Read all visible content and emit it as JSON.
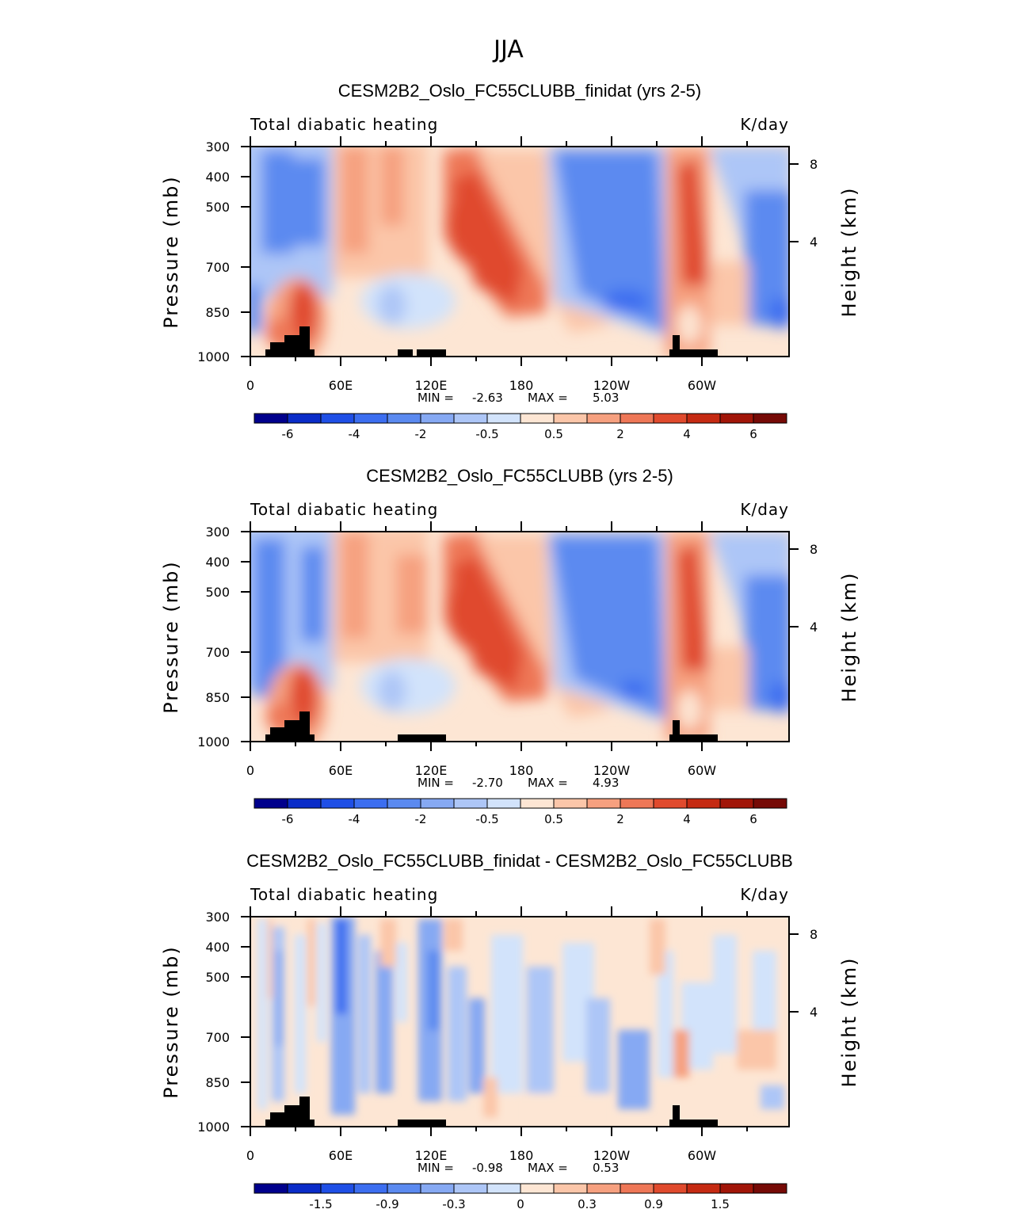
{
  "figure": {
    "title": "JJA"
  },
  "chart_data": [
    {
      "type": "heatmap",
      "title": "CESM2B2_Oslo_FC55CLUBB_finidat (yrs 2-5)",
      "left_label": "Total diabatic heating",
      "right_label": "K/day",
      "ylabel": "Pressure (mb)",
      "ylabel_right": "Height (km)",
      "x_ticks": [
        "0",
        "60E",
        "120E",
        "180",
        "120W",
        "60W"
      ],
      "y_ticks": [
        "300",
        "400",
        "500",
        "700",
        "850",
        "1000"
      ],
      "y_right_ticks": [
        "8",
        "4"
      ],
      "min_label": "MIN =",
      "min_value": "-2.63",
      "max_label": "MAX =",
      "max_value": "5.03",
      "colorbar_labels": [
        "-6",
        "-4",
        "-2",
        "-0.5",
        "0.5",
        "2",
        "4",
        "6"
      ]
    },
    {
      "type": "heatmap",
      "title": "CESM2B2_Oslo_FC55CLUBB (yrs 2-5)",
      "left_label": "Total diabatic heating",
      "right_label": "K/day",
      "ylabel": "Pressure (mb)",
      "ylabel_right": "Height (km)",
      "x_ticks": [
        "0",
        "60E",
        "120E",
        "180",
        "120W",
        "60W"
      ],
      "y_ticks": [
        "300",
        "400",
        "500",
        "700",
        "850",
        "1000"
      ],
      "y_right_ticks": [
        "8",
        "4"
      ],
      "min_label": "MIN =",
      "min_value": "-2.70",
      "max_label": "MAX =",
      "max_value": "4.93",
      "colorbar_labels": [
        "-6",
        "-4",
        "-2",
        "-0.5",
        "0.5",
        "2",
        "4",
        "6"
      ]
    },
    {
      "type": "heatmap",
      "title": "CESM2B2_Oslo_FC55CLUBB_finidat - CESM2B2_Oslo_FC55CLUBB",
      "left_label": "Total diabatic heating",
      "right_label": "K/day",
      "ylabel": "Pressure (mb)",
      "ylabel_right": "Height (km)",
      "x_ticks": [
        "0",
        "60E",
        "120E",
        "180",
        "120W",
        "60W"
      ],
      "y_ticks": [
        "300",
        "400",
        "500",
        "700",
        "850",
        "1000"
      ],
      "y_right_ticks": [
        "8",
        "4"
      ],
      "min_label": "MIN =",
      "min_value": "-0.98",
      "max_label": "MAX =",
      "max_value": "0.53",
      "colorbar_labels": [
        "-1.5",
        "-0.9",
        "-0.3",
        "0",
        "0.3",
        "0.9",
        "1.5"
      ]
    }
  ],
  "colors": {
    "palette": [
      "#00008c",
      "#0a2cc8",
      "#1f4fe6",
      "#3c6ef0",
      "#5b8af0",
      "#86a9f3",
      "#adc6f7",
      "#d2e3fb",
      "#fde6d4",
      "#fbc6a9",
      "#f6a07f",
      "#ee7757",
      "#e04a2d",
      "#c52a12",
      "#a11508",
      "#760a06"
    ],
    "terrain": "#000000"
  }
}
